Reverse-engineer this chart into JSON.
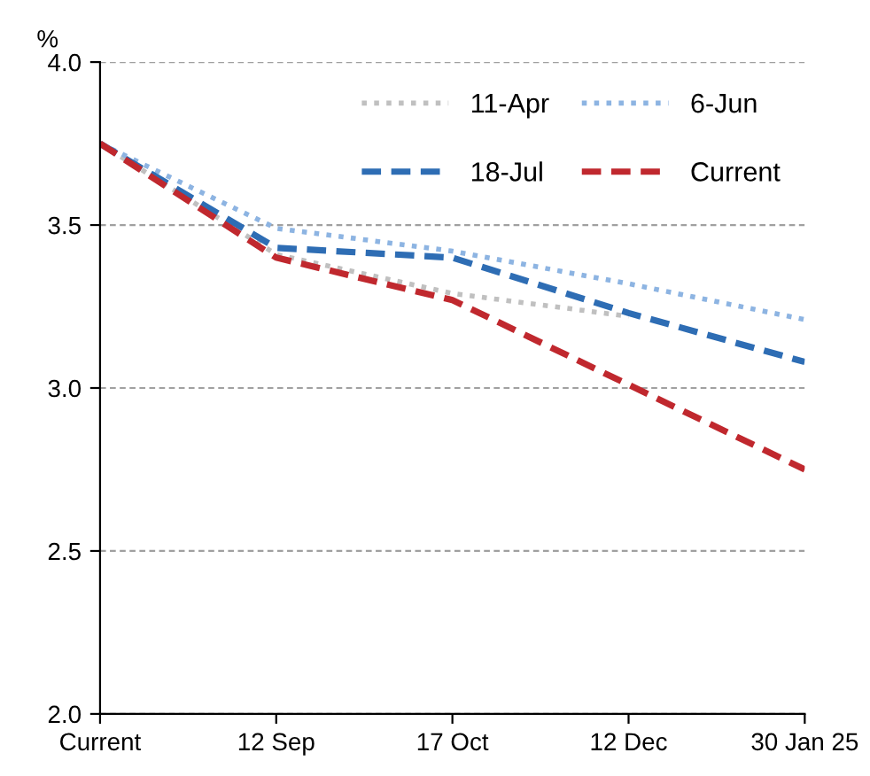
{
  "chart_data": {
    "type": "line",
    "ylabel": "%",
    "categories": [
      "Current",
      "12 Sep",
      "17 Oct",
      "12 Dec",
      "30 Jan 25"
    ],
    "series": [
      {
        "name": "11-Apr",
        "color": "#c0c0c0",
        "line_style": "dotted",
        "values": [
          3.75,
          3.41,
          3.29,
          3.22,
          null
        ]
      },
      {
        "name": "6-Jun",
        "color": "#8db4e2",
        "line_style": "dotted",
        "values": [
          3.75,
          3.49,
          3.42,
          3.32,
          3.21
        ]
      },
      {
        "name": "18-Jul",
        "color": "#2e6db4",
        "line_style": "dashed",
        "values": [
          3.75,
          3.43,
          3.4,
          3.23,
          3.08
        ]
      },
      {
        "name": "Current",
        "color": "#c0282e",
        "line_style": "dashed",
        "values": [
          3.75,
          3.4,
          3.27,
          3.01,
          2.75
        ]
      }
    ],
    "ylim": [
      2.0,
      4.0
    ],
    "yticks": [
      {
        "value": 2.0,
        "label": "2.0"
      },
      {
        "value": 2.5,
        "label": "2.5"
      },
      {
        "value": 3.0,
        "label": "3.0"
      },
      {
        "value": 3.5,
        "label": "3.5"
      },
      {
        "value": 4.0,
        "label": "4.0"
      }
    ],
    "grid": "y",
    "legend": "top right",
    "marker": "none"
  }
}
